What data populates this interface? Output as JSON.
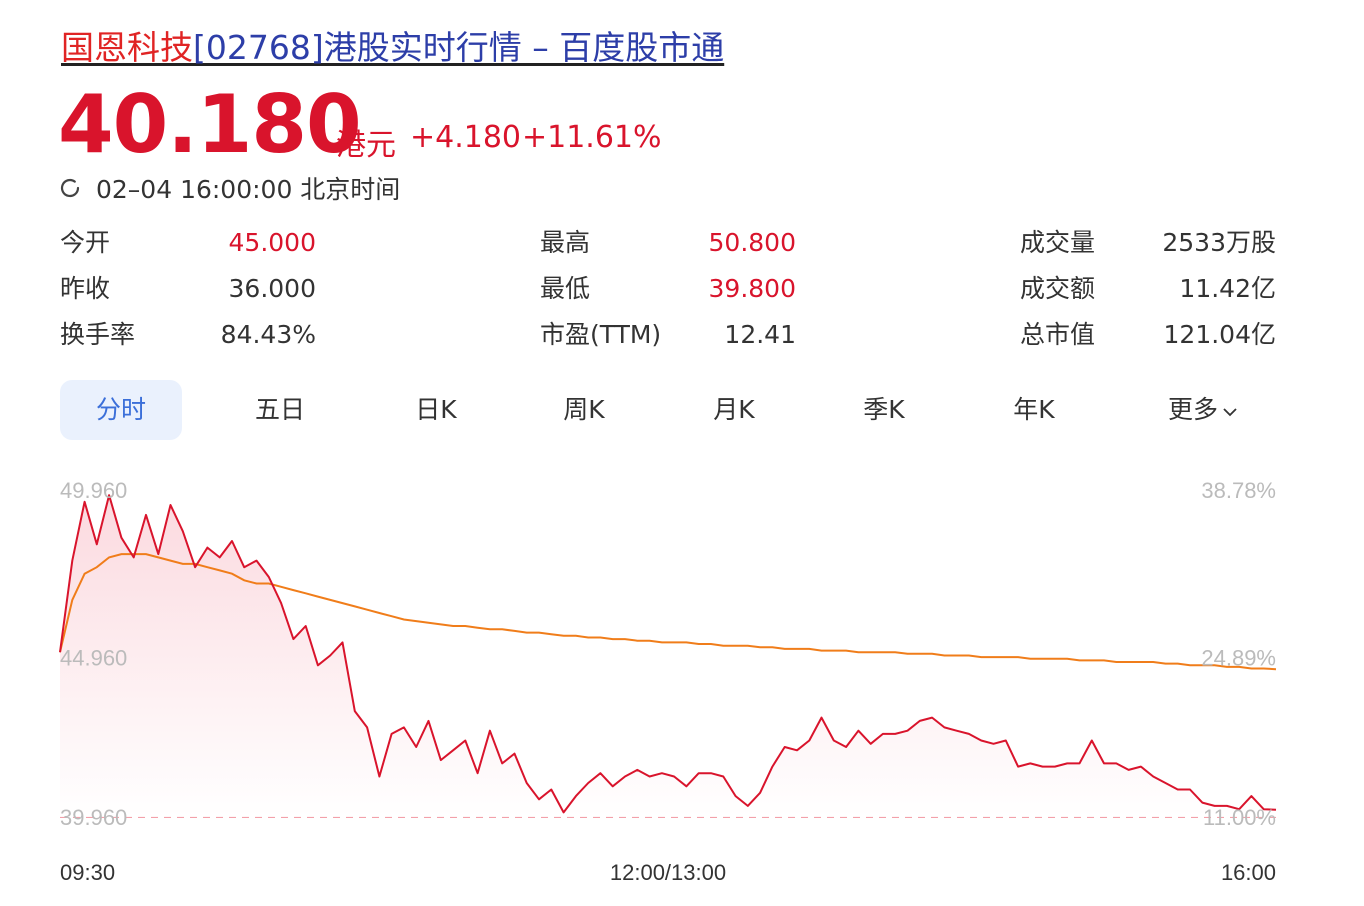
{
  "header": {
    "title_highlight": "国恩科技",
    "title_rest": "[02768]港股实时行情 – 百度股市通"
  },
  "quote": {
    "price": "40.180",
    "unit": "港元",
    "change": "+4.180",
    "change_pct": "+11.61%",
    "timestamp": "02–04 16:00:00 北京时间"
  },
  "stats": {
    "open_label": "今开",
    "open_value": "45.000",
    "prev_close_label": "昨收",
    "prev_close_value": "36.000",
    "turnover_rate_label": "换手率",
    "turnover_rate_value": "84.43%",
    "high_label": "最高",
    "high_value": "50.800",
    "low_label": "最低",
    "low_value": "39.800",
    "pe_label": "市盈(TTM)",
    "pe_value": "12.41",
    "volume_label": "成交量",
    "volume_value": "2533万股",
    "amount_label": "成交额",
    "amount_value": "11.42亿",
    "market_cap_label": "总市值",
    "market_cap_value": "121.04亿"
  },
  "tabs": [
    "分时",
    "五日",
    "日K",
    "周K",
    "月K",
    "季K",
    "年K",
    "更多"
  ],
  "colors": {
    "up": "#d9142c",
    "avg_line": "#f07d1a",
    "fill_top": "#fbdde2",
    "tab_active_bg": "#eaf1fd",
    "tab_active_text": "#3b6fd9"
  },
  "chart_data": {
    "type": "line",
    "y_labels_left": [
      "49.960",
      "44.960",
      "39.960"
    ],
    "y_labels_right": [
      "38.78%",
      "24.89%",
      "11.00%"
    ],
    "x_labels": [
      "09:30",
      "12:00/13:00",
      "16:00"
    ],
    "ylim": [
      39.96,
      49.96
    ],
    "baseline": 39.96,
    "x_count": 100,
    "series": [
      {
        "role": "price",
        "values": [
          45.0,
          47.8,
          49.6,
          48.3,
          49.8,
          48.5,
          47.9,
          49.2,
          48.0,
          49.5,
          48.7,
          47.6,
          48.2,
          47.9,
          48.4,
          47.6,
          47.8,
          47.3,
          46.5,
          45.4,
          45.8,
          44.6,
          44.9,
          45.3,
          43.2,
          42.7,
          41.2,
          42.5,
          42.7,
          42.1,
          42.9,
          41.7,
          42.0,
          42.3,
          41.3,
          42.6,
          41.6,
          41.9,
          41.0,
          40.5,
          40.8,
          40.1,
          40.6,
          41.0,
          41.3,
          40.9,
          41.2,
          41.4,
          41.2,
          41.3,
          41.2,
          40.9,
          41.3,
          41.3,
          41.2,
          40.6,
          40.3,
          40.7,
          41.5,
          42.1,
          42.0,
          42.3,
          43.0,
          42.3,
          42.1,
          42.6,
          42.2,
          42.5,
          42.5,
          42.6,
          42.9,
          43.0,
          42.7,
          42.6,
          42.5,
          42.3,
          42.2,
          42.3,
          41.5,
          41.6,
          41.5,
          41.5,
          41.6,
          41.6,
          42.3,
          41.6,
          41.6,
          41.4,
          41.5,
          41.2,
          41.0,
          40.8,
          40.8,
          40.4,
          40.3,
          40.3,
          40.2,
          40.6,
          40.2,
          40.18
        ]
      },
      {
        "role": "average",
        "values": [
          45.0,
          46.6,
          47.4,
          47.6,
          47.9,
          48.0,
          48.0,
          48.0,
          47.9,
          47.8,
          47.7,
          47.7,
          47.6,
          47.5,
          47.4,
          47.2,
          47.1,
          47.1,
          47.0,
          46.9,
          46.8,
          46.7,
          46.6,
          46.5,
          46.4,
          46.3,
          46.2,
          46.1,
          46.0,
          45.95,
          45.9,
          45.85,
          45.8,
          45.8,
          45.75,
          45.7,
          45.7,
          45.65,
          45.6,
          45.6,
          45.55,
          45.5,
          45.5,
          45.45,
          45.45,
          45.4,
          45.4,
          45.35,
          45.35,
          45.3,
          45.3,
          45.3,
          45.25,
          45.25,
          45.2,
          45.2,
          45.2,
          45.15,
          45.15,
          45.1,
          45.1,
          45.1,
          45.05,
          45.05,
          45.05,
          45.0,
          45.0,
          45.0,
          45.0,
          44.95,
          44.95,
          44.95,
          44.9,
          44.9,
          44.9,
          44.85,
          44.85,
          44.85,
          44.85,
          44.8,
          44.8,
          44.8,
          44.8,
          44.75,
          44.75,
          44.75,
          44.7,
          44.7,
          44.7,
          44.7,
          44.65,
          44.65,
          44.6,
          44.6,
          44.6,
          44.55,
          44.55,
          44.5,
          44.5,
          44.48
        ]
      }
    ]
  }
}
